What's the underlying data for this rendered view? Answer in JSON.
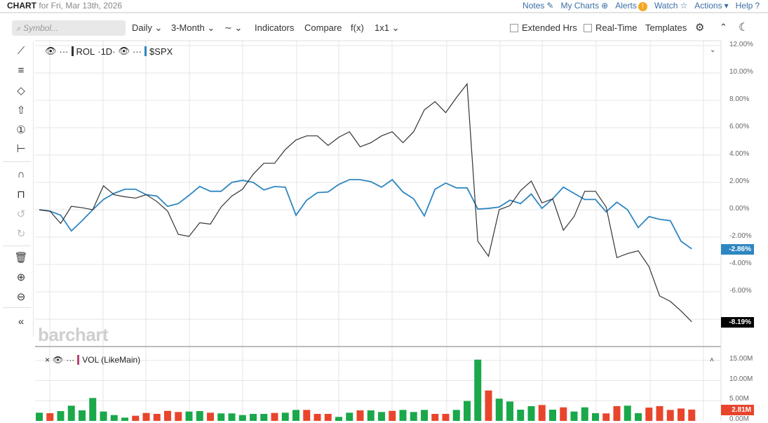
{
  "header": {
    "title_bold": "CHART",
    "title_rest": "for Fri, Mar 13th, 2026",
    "links": [
      {
        "label": "Notes",
        "icon": "edit-icon",
        "glyph": "✎"
      },
      {
        "label": "My Charts",
        "icon": "plus-circle-icon",
        "glyph": "⊕"
      },
      {
        "label": "Alerts",
        "icon": "alert-icon",
        "glyph": "!"
      },
      {
        "label": "Watch",
        "icon": "star-icon",
        "glyph": "☆"
      },
      {
        "label": "Actions",
        "icon": "caret-down-icon",
        "glyph": "▾"
      },
      {
        "label": "Help",
        "icon": "help-icon",
        "glyph": "?"
      }
    ]
  },
  "toolbar": {
    "search_placeholder": "Symbol...",
    "interval": "Daily",
    "range": "3-Month",
    "chart_type": "∼",
    "indicators": "Indicators",
    "compare": "Compare",
    "fx": "f(x)",
    "layout": "1x1",
    "extended": "Extended Hrs",
    "realtime": "Real-Time",
    "templates": "Templates",
    "settings_glyph": "⚙",
    "collapse_glyph": "⌃",
    "theme_glyph": "☾"
  },
  "left_tools": [
    {
      "name": "trendline-icon",
      "glyph": "⟋"
    },
    {
      "name": "fib-icon",
      "glyph": "≡"
    },
    {
      "name": "shape-icon",
      "glyph": "◇"
    },
    {
      "name": "arrow-up-icon",
      "glyph": "⇧"
    },
    {
      "name": "annotation-icon",
      "glyph": "①"
    },
    {
      "name": "measure-icon",
      "glyph": "⊢"
    },
    {
      "name": "magnet-icon",
      "glyph": "∩"
    },
    {
      "name": "unlock-icon",
      "glyph": "⊓"
    },
    {
      "name": "undo-icon",
      "glyph": "↺"
    },
    {
      "name": "redo-icon",
      "glyph": "↻"
    },
    {
      "name": "trash-icon",
      "glyph": "🗑"
    },
    {
      "name": "zoom-in-icon",
      "glyph": "⊕"
    },
    {
      "name": "zoom-out-icon",
      "glyph": "⊖"
    },
    {
      "name": "collapse-icon",
      "glyph": "«"
    }
  ],
  "legend": {
    "symbol1": "ROL",
    "interval1": "·1D·",
    "symbol2": "$SPX",
    "volume": "VOL (LikeMain)"
  },
  "logo": "barchart",
  "colors": {
    "rol": "#333333",
    "spx": "#2e86c1",
    "up": "#1aa84a",
    "down": "#e8452c",
    "grid": "#e6e6e6"
  },
  "chart_data": [
    {
      "type": "line",
      "yunit": "%",
      "ylim": [
        -8,
        12
      ],
      "yticks": [
        "12.00%",
        "10.00%",
        "8.00%",
        "6.00%",
        "4.00%",
        "2.00%",
        "0.00%",
        "-2.00%",
        "-4.00%",
        "-6.00%"
      ],
      "series": [
        {
          "name": "ROL",
          "last_label": "-8.19%",
          "values": [
            0,
            -0.1,
            -1.0,
            0.25,
            0.15,
            0,
            1.75,
            1.1,
            0.95,
            0.85,
            1.1,
            0.6,
            -0.1,
            -1.8,
            -1.95,
            -0.95,
            -1.05,
            0.2,
            1.0,
            1.5,
            2.6,
            3.4,
            3.4,
            4.4,
            5.1,
            5.4,
            5.4,
            4.7,
            5.3,
            5.7,
            4.6,
            4.9,
            5.4,
            5.7,
            4.9,
            5.7,
            7.3,
            7.9,
            7.1,
            8.2,
            9.2,
            -2.3,
            -3.4,
            0,
            0.3,
            1.4,
            2.1,
            0.5,
            0.8,
            -1.5,
            -0.5,
            1.35,
            1.35,
            0.2,
            -3.5,
            -3.2,
            -3.0,
            -4.15,
            -6.3,
            -6.7,
            -7.4,
            -8.19
          ]
        },
        {
          "name": "$SPX",
          "last_label": "-2.86%",
          "values": [
            0,
            -0.1,
            -0.4,
            -1.55,
            -0.8,
            0,
            0.75,
            1.2,
            1.5,
            1.5,
            1.1,
            1.0,
            0.25,
            0.45,
            1.05,
            1.7,
            1.35,
            1.35,
            2.0,
            2.15,
            2.0,
            1.45,
            1.7,
            1.65,
            -0.4,
            0.7,
            1.25,
            1.3,
            1.85,
            2.2,
            2.2,
            2.05,
            1.65,
            2.2,
            1.3,
            0.8,
            -0.45,
            1.5,
            1.95,
            1.6,
            1.6,
            0.05,
            0.1,
            0.2,
            0.7,
            0.45,
            1.15,
            0.1,
            0.8,
            1.65,
            1.2,
            0.75,
            0.75,
            -0.15,
            0.55,
            0,
            -1.3,
            -0.5,
            -0.7,
            -0.8,
            -2.3,
            -2.86
          ]
        }
      ]
    },
    {
      "type": "bar",
      "name": "VOL (LikeMain)",
      "yunit": "M",
      "ylim": [
        0,
        16
      ],
      "yticks": [
        "15.00M",
        "10.00M",
        "5.00M",
        "0.00M"
      ],
      "last_label": "2.81M",
      "values": [
        2.03,
        1.91,
        2.43,
        3.77,
        2.61,
        5.68,
        2.32,
        1.45,
        0.81,
        1.28,
        1.97,
        1.74,
        2.49,
        2.2,
        2.32,
        2.43,
        2.03,
        1.86,
        1.86,
        1.45,
        1.74,
        1.74,
        1.97,
        2.03,
        2.72,
        2.72,
        1.74,
        1.74,
        0.99,
        2.03,
        2.61,
        2.61,
        2.2,
        2.49,
        2.72,
        2.2,
        2.72,
        1.74,
        1.74,
        2.72,
        4.93,
        15.19,
        7.54,
        5.51,
        4.81,
        2.78,
        3.65,
        3.94,
        2.78,
        3.36,
        2.32,
        3.36,
        1.91,
        1.86,
        3.65,
        3.77,
        1.91,
        3.3,
        3.65,
        2.72,
        3.07,
        2.81
      ],
      "direction": "GRGGGGGGGRRRRRGGRGGGGGRGGRRRGGRGGRGGGRRGGGRGGGGRGRGGGRRGGRRRRR"
    }
  ]
}
